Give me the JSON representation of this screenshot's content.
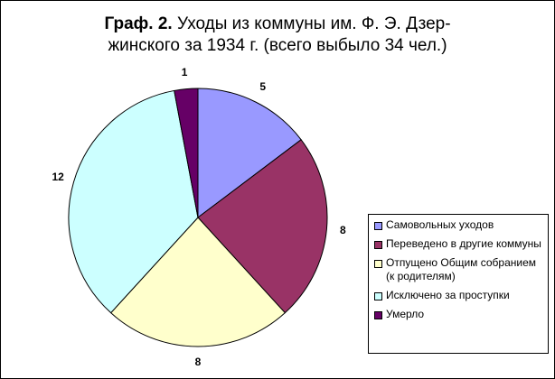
{
  "chart_data": {
    "type": "pie",
    "title": {
      "label": "Граф. 2.",
      "lines": [
        "Уходы из коммуны им. Ф. Э. Дзер-",
        "жинского за 1934 г. (всего выбыло 34 чел.)"
      ]
    },
    "categories": [
      "Самовольных уходов",
      "Переведено в другие коммуны",
      "Отпущено Общим собранием (к родителям)",
      "Исключено за проступки",
      "Умерло"
    ],
    "values": [
      5,
      8,
      8,
      12,
      1
    ],
    "colors": [
      "#9999ff",
      "#993366",
      "#ffffcc",
      "#ccffff",
      "#660066"
    ],
    "legend": "right"
  }
}
